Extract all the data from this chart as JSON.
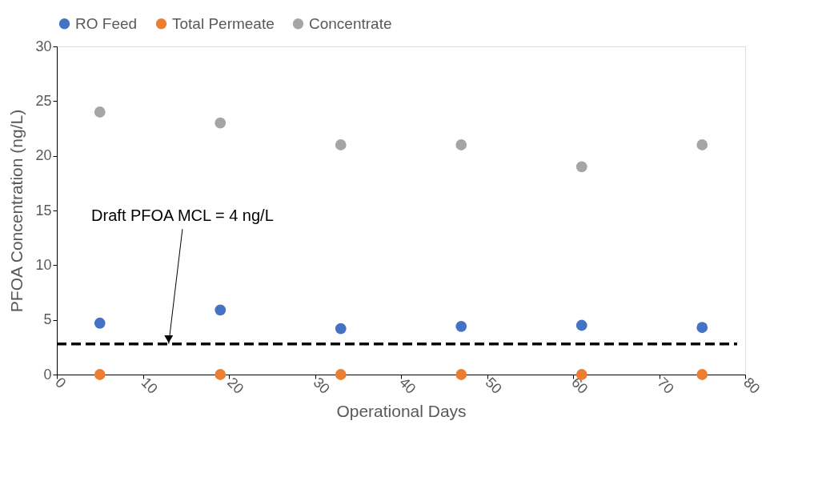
{
  "chart_data": {
    "type": "scatter",
    "xlabel": "Operational Days",
    "ylabel": "PFOA Concentration (ng/L)",
    "x": [
      5,
      19,
      33,
      47,
      61,
      75
    ],
    "series": [
      {
        "name": "RO Feed",
        "color": "#4472c4",
        "values": [
          4.7,
          5.9,
          4.2,
          4.4,
          4.5,
          4.3
        ]
      },
      {
        "name": "Total Permeate",
        "color": "#ed7d31",
        "values": [
          0,
          0,
          0,
          0,
          0,
          0
        ]
      },
      {
        "name": "Concentrate",
        "color": "#a5a5a5",
        "values": [
          24,
          23,
          21,
          21,
          19,
          21
        ]
      }
    ],
    "xlim": [
      0,
      80
    ],
    "xticks": [
      0,
      10,
      20,
      30,
      40,
      50,
      60,
      70,
      80
    ],
    "ylim": [
      0,
      30
    ],
    "yticks": [
      0,
      5,
      10,
      15,
      20,
      25,
      30
    ],
    "ref_lines": [
      {
        "axis": "y",
        "value": 2.8,
        "color": "#000000",
        "line_style": "dashed"
      }
    ],
    "annotations": [
      {
        "text": "Draft PFOA MCL = 4 ng/L",
        "x": 13,
        "y": 2.8
      }
    ],
    "marker": "circle",
    "grid": false,
    "legend": "top"
  }
}
